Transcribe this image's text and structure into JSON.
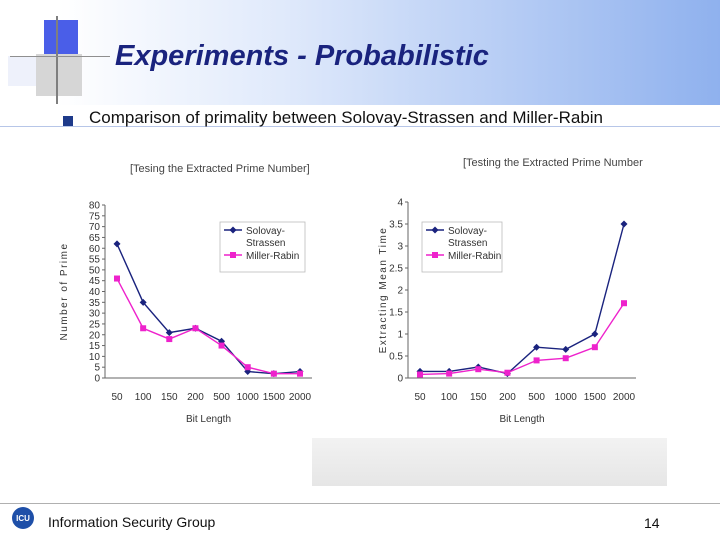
{
  "slide": {
    "title": "Experiments - Probabilistic",
    "subtitle": "Comparison of primality between Solovay-Strassen and Miller-Rabin",
    "footer": "Information Security Group",
    "page_number": "14",
    "logo_text": "ICU"
  },
  "colors": {
    "series_a": "#1a237e",
    "series_b": "#ee22cc",
    "axis": "#333333",
    "title": "#1a237e"
  },
  "chart_data": [
    {
      "type": "line",
      "title": "[Tesing the Extracted Prime Number]",
      "ylabel": "Number of Prime",
      "xlabel": "Bit Length",
      "categories": [
        "50",
        "100",
        "150",
        "200",
        "500",
        "1000",
        "1500",
        "2000"
      ],
      "ylim": [
        0,
        80
      ],
      "yticks": [
        0,
        5,
        10,
        15,
        20,
        25,
        30,
        35,
        40,
        45,
        50,
        55,
        60,
        65,
        70,
        75,
        80
      ],
      "series": [
        {
          "name": "Solovay-Strassen",
          "values": [
            62,
            35,
            21,
            23,
            17,
            3,
            2,
            3
          ]
        },
        {
          "name": "Miller-Rabin",
          "values": [
            46,
            23,
            18,
            23,
            15,
            5,
            2,
            2
          ]
        }
      ],
      "legend_position": "top-right",
      "grid": false
    },
    {
      "type": "line",
      "title": "[Testing the Extracted Prime Number",
      "ylabel": "Extracting Mean Time",
      "xlabel": "Bit Length",
      "categories": [
        "50",
        "100",
        "150",
        "200",
        "500",
        "1000",
        "1500",
        "2000"
      ],
      "ylim": [
        0,
        4
      ],
      "yticks": [
        "0",
        "0.5",
        "1",
        "1.5",
        "2",
        "2.5",
        "3",
        "3.5",
        "4"
      ],
      "series": [
        {
          "name": "Solovay-Strassen",
          "values": [
            0.15,
            0.15,
            0.25,
            0.1,
            0.7,
            0.65,
            1.0,
            3.5
          ]
        },
        {
          "name": "Miller-Rabin",
          "values": [
            0.08,
            0.1,
            0.2,
            0.12,
            0.4,
            0.45,
            0.7,
            1.7
          ]
        }
      ],
      "legend_position": "top-right",
      "grid": false
    }
  ]
}
